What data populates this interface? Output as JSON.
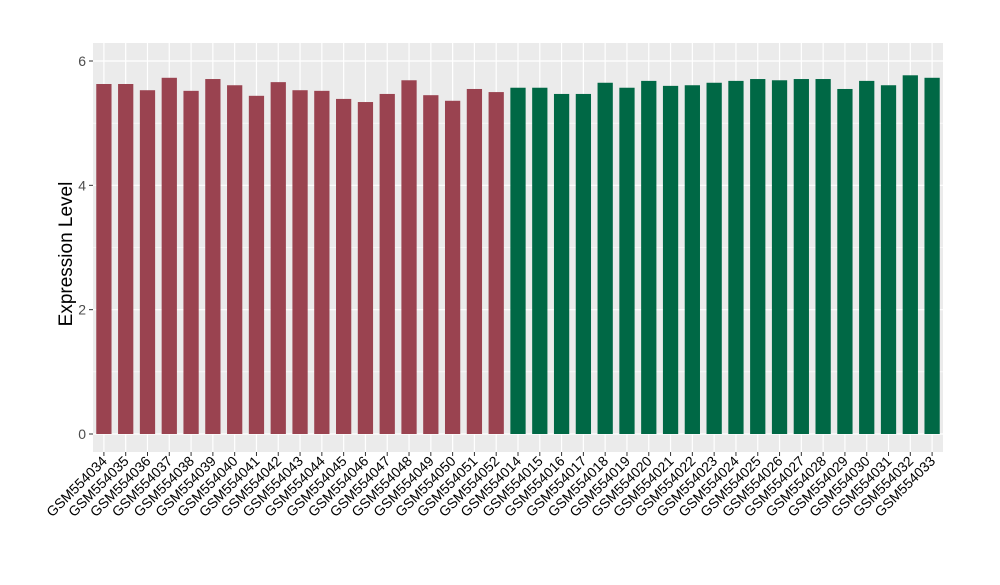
{
  "chart_data": {
    "type": "bar",
    "title": "",
    "xlabel": "",
    "ylabel": "Expression Level",
    "ylim": [
      0,
      6
    ],
    "yticks": [
      0,
      2,
      4,
      6
    ],
    "grid": true,
    "legend": "none",
    "colors": {
      "group1": "#9A4350",
      "group2": "#006845",
      "panel": "#EBEBEB",
      "grid": "#FFFFFF"
    },
    "categories": [
      "GSM554034",
      "GSM554035",
      "GSM554036",
      "GSM554037",
      "GSM554038",
      "GSM554039",
      "GSM554040",
      "GSM554041",
      "GSM554042",
      "GSM554043",
      "GSM554044",
      "GSM554045",
      "GSM554046",
      "GSM554047",
      "GSM554048",
      "GSM554049",
      "GSM554050",
      "GSM554051",
      "GSM554052",
      "GSM554014",
      "GSM554015",
      "GSM554016",
      "GSM554017",
      "GSM554018",
      "GSM554019",
      "GSM554020",
      "GSM554021",
      "GSM554022",
      "GSM554023",
      "GSM554024",
      "GSM554025",
      "GSM554026",
      "GSM554027",
      "GSM554028",
      "GSM554029",
      "GSM554030",
      "GSM554031",
      "GSM554032",
      "GSM554033"
    ],
    "values": [
      5.63,
      5.63,
      5.53,
      5.73,
      5.52,
      5.71,
      5.61,
      5.44,
      5.66,
      5.53,
      5.52,
      5.39,
      5.34,
      5.47,
      5.69,
      5.45,
      5.36,
      5.55,
      5.5,
      5.57,
      5.57,
      5.47,
      5.47,
      5.65,
      5.57,
      5.68,
      5.6,
      5.61,
      5.65,
      5.68,
      5.71,
      5.69,
      5.71,
      5.71,
      5.55,
      5.68,
      5.61,
      5.77,
      5.73
    ],
    "groups": [
      1,
      1,
      1,
      1,
      1,
      1,
      1,
      1,
      1,
      1,
      1,
      1,
      1,
      1,
      1,
      1,
      1,
      1,
      1,
      2,
      2,
      2,
      2,
      2,
      2,
      2,
      2,
      2,
      2,
      2,
      2,
      2,
      2,
      2,
      2,
      2,
      2,
      2,
      2
    ]
  }
}
